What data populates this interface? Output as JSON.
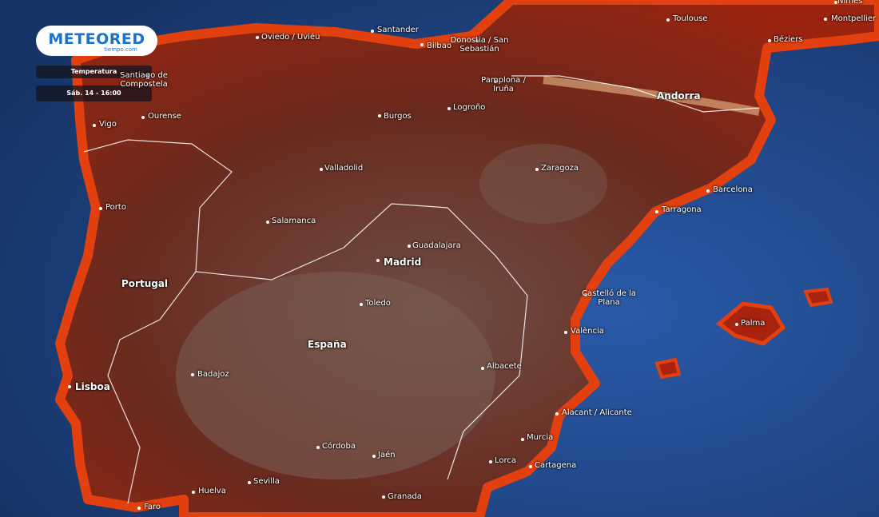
{
  "logo": {
    "brand": "METEORED",
    "site": "tiempo.com"
  },
  "panel": {
    "layer": "Temperatura",
    "time": "Sáb. 14 - 16:00"
  },
  "places": [
    "Oviedo / Uviéu",
    "Santander",
    "Bilbao",
    "Donostia / San Sebastián",
    "Toulouse",
    "Nîmes",
    "Montpellier",
    "Béziers",
    "Santiago de Compostela",
    "Vigo",
    "Ourense",
    "Burgos",
    "Logroño",
    "Pamplona / Iruña",
    "Andorra",
    "Valladolid",
    "Zaragoza",
    "Barcelona",
    "Tarragona",
    "Porto",
    "Salamanca",
    "Guadalajara",
    "Madrid",
    "Portugal",
    "Castelló de la Plana",
    "Toledo",
    "Palma",
    "València",
    "España",
    "Albacete",
    "Badajoz",
    "Lisboa",
    "Alacant / Alicante",
    "Murcia",
    "Córdoba",
    "Jaén",
    "Lorca",
    "Cartagena",
    "Sevilla",
    "Huelva",
    "Granada",
    "Faro"
  ]
}
